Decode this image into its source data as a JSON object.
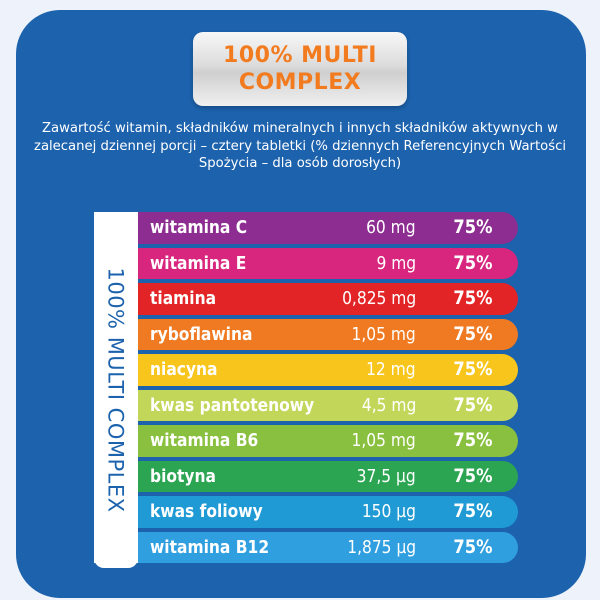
{
  "badge": {
    "line1": "100% MULTI",
    "line2": "COMPLEX"
  },
  "description": "Zawartość witamin, składników mineralnych i innych składników aktywnych w zalecanej dziennej porcji – cztery tabletki (% dziennych Referencyjnych Wartości Spożycia – dla osób dorosłych)",
  "vertical_label": "100% MULTI COMPLEX",
  "colors": {
    "background": "#1c62ad",
    "badge_text": "#f27b1f"
  },
  "rows": [
    {
      "name": "witamina C",
      "amount": "60 mg",
      "percent": "75%",
      "color": "#8d2d91"
    },
    {
      "name": "witamina E",
      "amount": "9 mg",
      "percent": "75%",
      "color": "#d8267e"
    },
    {
      "name": "tiamina",
      "amount": "0,825 mg",
      "percent": "75%",
      "color": "#e22427"
    },
    {
      "name": "ryboflawina",
      "amount": "1,05 mg",
      "percent": "75%",
      "color": "#f07a22"
    },
    {
      "name": "niacyna",
      "amount": "12 mg",
      "percent": "75%",
      "color": "#f7c51c"
    },
    {
      "name": "kwas pantotenowy",
      "amount": "4,5 mg",
      "percent": "75%",
      "color": "#c2d75a"
    },
    {
      "name": "witamina B6",
      "amount": "1,05 mg",
      "percent": "75%",
      "color": "#8ac03f"
    },
    {
      "name": "biotyna",
      "amount": "37,5 µg",
      "percent": "75%",
      "color": "#2ba552"
    },
    {
      "name": "kwas foliowy",
      "amount": "150 µg",
      "percent": "75%",
      "color": "#1f9ad5"
    },
    {
      "name": "witamina B12",
      "amount": "1,875 µg",
      "percent": "75%",
      "color": "#2f9fe0"
    }
  ]
}
